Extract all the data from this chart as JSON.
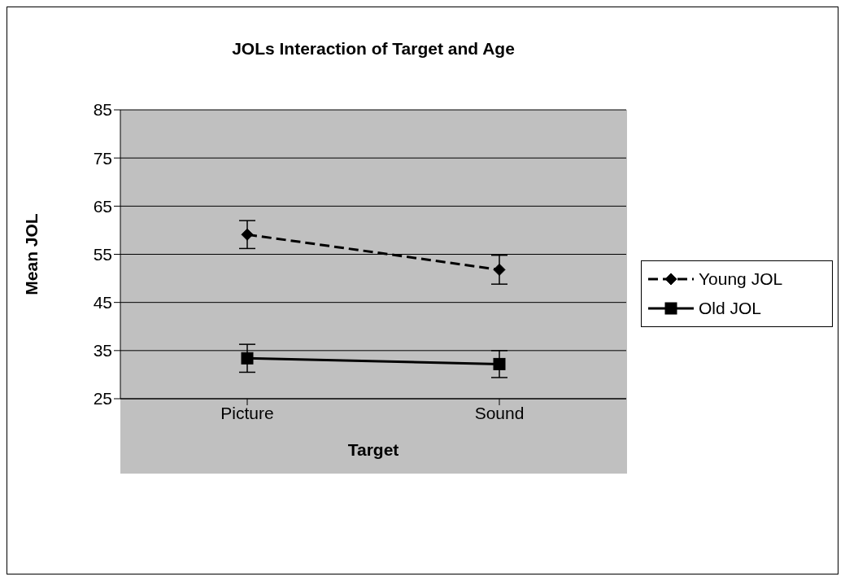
{
  "chart_data": {
    "type": "line",
    "title": "JOLs Interaction of Target and Age",
    "xlabel": "Target",
    "ylabel": "Mean JOL",
    "categories": [
      "Picture",
      "Sound"
    ],
    "series": [
      {
        "name": "Young JOL",
        "color": "#000000",
        "values": [
          59.1,
          51.8
        ],
        "errors": [
          2.9,
          3
        ],
        "marker": "diamond",
        "line_style": "dashed"
      },
      {
        "name": "Old JOL",
        "color": "#000000",
        "values": [
          33.4,
          32.2
        ],
        "errors": [
          2.9,
          2.8
        ],
        "marker": "square",
        "line_style": "solid"
      }
    ],
    "ylim": [
      25,
      85
    ],
    "yticks": [
      25,
      35,
      45,
      55,
      65,
      75,
      85
    ],
    "grid": "y",
    "legend": "right"
  }
}
